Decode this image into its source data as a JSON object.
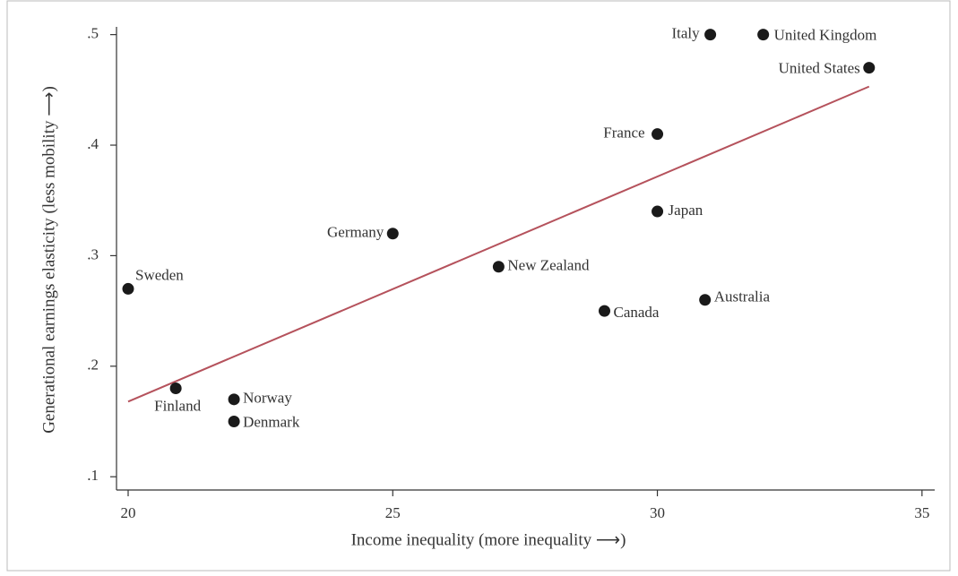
{
  "chart_data": {
    "type": "scatter",
    "x_label": "Income inequality (more inequality ⟶)",
    "y_label": "Generational earnings elasticity (less mobility ⟶)",
    "labels": [
      "Italy",
      "United Kingdom",
      "United States",
      "France",
      "Japan",
      "Germany",
      "New Zealand",
      "Canada",
      "Australia",
      "Sweden",
      "Finland",
      "Norway",
      "Denmark"
    ],
    "x": [
      31,
      32,
      34,
      30,
      30,
      25,
      27,
      29,
      30.9,
      20,
      20.9,
      22,
      22
    ],
    "values": [
      0.5,
      0.5,
      0.47,
      0.41,
      0.34,
      0.32,
      0.29,
      0.25,
      0.26,
      0.27,
      0.18,
      0.17,
      0.15
    ],
    "color": "#1a1a1a",
    "fit": {
      "x": [
        20,
        34
      ],
      "y": [
        0.168,
        0.453
      ],
      "color": "#b5525c"
    },
    "xlim": [
      19.78,
      35.24
    ],
    "ylim": [
      0.088,
      0.507
    ],
    "xticks": [
      20,
      25,
      30,
      35
    ],
    "yticks": [
      {
        "value": 0.1,
        "label": ".1"
      },
      {
        "value": 0.2,
        "label": ".2"
      },
      {
        "value": 0.3,
        "label": ".3"
      },
      {
        "value": 0.4,
        "label": ".4"
      },
      {
        "value": 0.5,
        "label": ".5"
      }
    ]
  }
}
